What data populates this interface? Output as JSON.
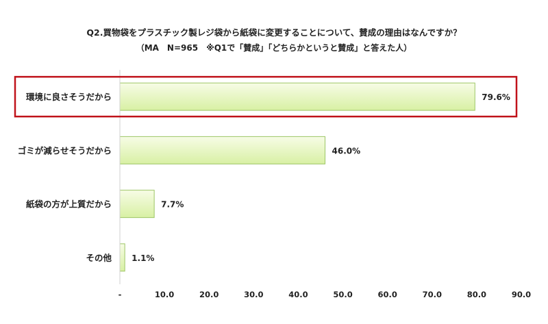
{
  "chart_data": {
    "type": "bar",
    "orientation": "horizontal",
    "title": "Q2.買物袋をプラスチック製レジ袋から紙袋に変更することについて、賛成の理由はなんですか？",
    "subtitle": "（MA　N=965　※Q1で「賛成」「どちらかというと賛成」と答えた人）",
    "categories": [
      "環境に良さそうだから",
      "ゴミが減らせそうだから",
      "紙袋の方が上質だから",
      "その他"
    ],
    "values": [
      79.6,
      46.0,
      7.7,
      1.1
    ],
    "value_labels": [
      "79.6%",
      "46.0%",
      "7.7%",
      "1.1%"
    ],
    "x_ticks": [
      "-",
      "10.0",
      "20.0",
      "30.0",
      "40.0",
      "50.0",
      "60.0",
      "70.0",
      "80.0",
      "90.0"
    ],
    "xlim": [
      0,
      90
    ],
    "grid": false,
    "highlighted_category": "環境に良さそうだから",
    "colors": {
      "bar_fill_light": "#f7fce6",
      "bar_fill_dark": "#d8f0a4",
      "bar_stroke": "#9cc564",
      "highlight_box": "#c0121a",
      "axis": "#d0d0d0"
    }
  }
}
